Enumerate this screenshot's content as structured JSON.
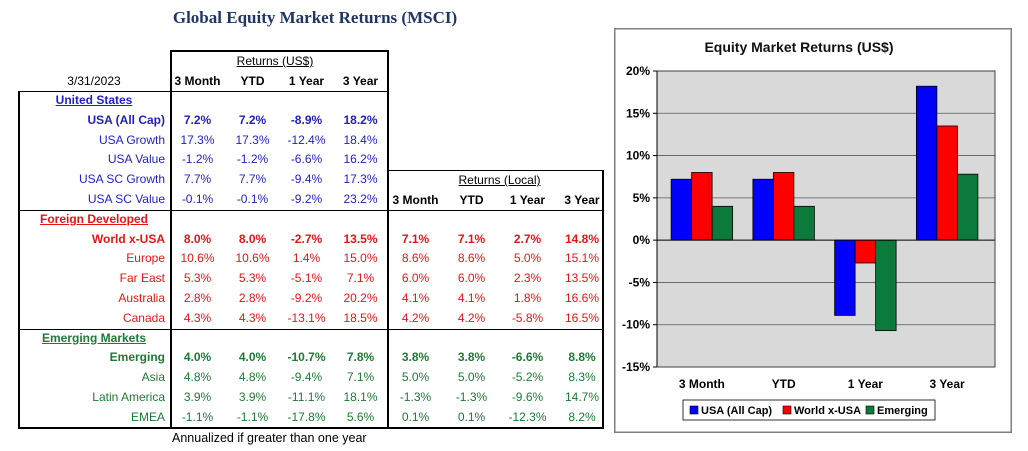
{
  "title": "Global Equity Market Returns (MSCI)",
  "table": {
    "date": "3/31/2023",
    "usd_header": "Returns (US$)",
    "usd_columns": [
      "3 Month",
      "YTD",
      "1 Year",
      "3 Year"
    ],
    "local_header": "Returns (Local)",
    "local_columns": [
      "3 Month",
      "YTD",
      "1 Year",
      "3 Year"
    ],
    "sections": [
      {
        "name": "United States",
        "color": "#1f1fc4",
        "rows": [
          {
            "label": "USA (All Cap)",
            "usd": [
              "7.2%",
              "7.2%",
              "-8.9%",
              "18.2%"
            ]
          },
          {
            "label": "USA Growth",
            "usd": [
              "17.3%",
              "17.3%",
              "-12.4%",
              "18.4%"
            ]
          },
          {
            "label": "USA Value",
            "usd": [
              "-1.2%",
              "-1.2%",
              "-6.6%",
              "16.2%"
            ]
          },
          {
            "label": "USA SC Growth",
            "usd": [
              "7.7%",
              "7.7%",
              "-9.4%",
              "17.3%"
            ]
          },
          {
            "label": "USA SC Value",
            "usd": [
              "-0.1%",
              "-0.1%",
              "-9.2%",
              "23.2%"
            ]
          }
        ]
      },
      {
        "name": "Foreign Developed",
        "color": "#e51515",
        "rows": [
          {
            "label": "World x-USA",
            "usd": [
              "8.0%",
              "8.0%",
              "-2.7%",
              "13.5%"
            ],
            "local": [
              "7.1%",
              "7.1%",
              "2.7%",
              "14.8%"
            ]
          },
          {
            "label": "Europe",
            "usd": [
              "10.6%",
              "10.6%",
              "1.4%",
              "15.0%"
            ],
            "local": [
              "8.6%",
              "8.6%",
              "5.0%",
              "15.1%"
            ]
          },
          {
            "label": "Far East",
            "usd": [
              "5.3%",
              "5.3%",
              "-5.1%",
              "7.1%"
            ],
            "local": [
              "6.0%",
              "6.0%",
              "2.3%",
              "13.5%"
            ]
          },
          {
            "label": "Australia",
            "usd": [
              "2.8%",
              "2.8%",
              "-9.2%",
              "20.2%"
            ],
            "local": [
              "4.1%",
              "4.1%",
              "1.8%",
              "16.6%"
            ]
          },
          {
            "label": "Canada",
            "usd": [
              "4.3%",
              "4.3%",
              "-13.1%",
              "18.5%"
            ],
            "local": [
              "4.2%",
              "4.2%",
              "-5.8%",
              "16.5%"
            ]
          }
        ]
      },
      {
        "name": "Emerging Markets",
        "color": "#1e7a34",
        "rows": [
          {
            "label": "Emerging",
            "usd": [
              "4.0%",
              "4.0%",
              "-10.7%",
              "7.8%"
            ],
            "local": [
              "3.8%",
              "3.8%",
              "-6.6%",
              "8.8%"
            ]
          },
          {
            "label": "Asia",
            "usd": [
              "4.8%",
              "4.8%",
              "-9.4%",
              "7.1%"
            ],
            "local": [
              "5.0%",
              "5.0%",
              "-5.2%",
              "8.3%"
            ]
          },
          {
            "label": "Latin America",
            "usd": [
              "3.9%",
              "3.9%",
              "-11.1%",
              "18.1%"
            ],
            "local": [
              "-1.3%",
              "-1.3%",
              "-9.6%",
              "14.7%"
            ]
          },
          {
            "label": "EMEA",
            "usd": [
              "-1.1%",
              "-1.1%",
              "-17.8%",
              "5.6%"
            ],
            "local": [
              "0.1%",
              "0.1%",
              "-12.3%",
              "8.2%"
            ]
          }
        ]
      }
    ],
    "footnote": "Annualized if greater than one year"
  },
  "chart_data": {
    "type": "bar",
    "title": "Equity Market Returns (US$)",
    "categories": [
      "3 Month",
      "YTD",
      "1 Year",
      "3 Year"
    ],
    "series": [
      {
        "name": "USA (All Cap)",
        "color": "#0000ff",
        "values": [
          7.2,
          7.2,
          -8.9,
          18.2
        ]
      },
      {
        "name": "World x-USA",
        "color": "#ff0000",
        "values": [
          8.0,
          8.0,
          -2.7,
          13.5
        ]
      },
      {
        "name": "Emerging",
        "color": "#0c7a3b",
        "values": [
          4.0,
          4.0,
          -10.7,
          7.8
        ]
      }
    ],
    "ylim": [
      -15,
      20
    ],
    "yticks": [
      {
        "value": 20,
        "label": "20%"
      },
      {
        "value": 15,
        "label": "15%"
      },
      {
        "value": 10,
        "label": "10%"
      },
      {
        "value": 5,
        "label": "5%"
      },
      {
        "value": 0,
        "label": "0%"
      },
      {
        "value": -5,
        "label": "-5%"
      },
      {
        "value": -10,
        "label": "-10%"
      },
      {
        "value": -15,
        "label": "-15%"
      }
    ],
    "grid": true,
    "legend": "bottom",
    "plot_background": "#d9d9d9"
  }
}
